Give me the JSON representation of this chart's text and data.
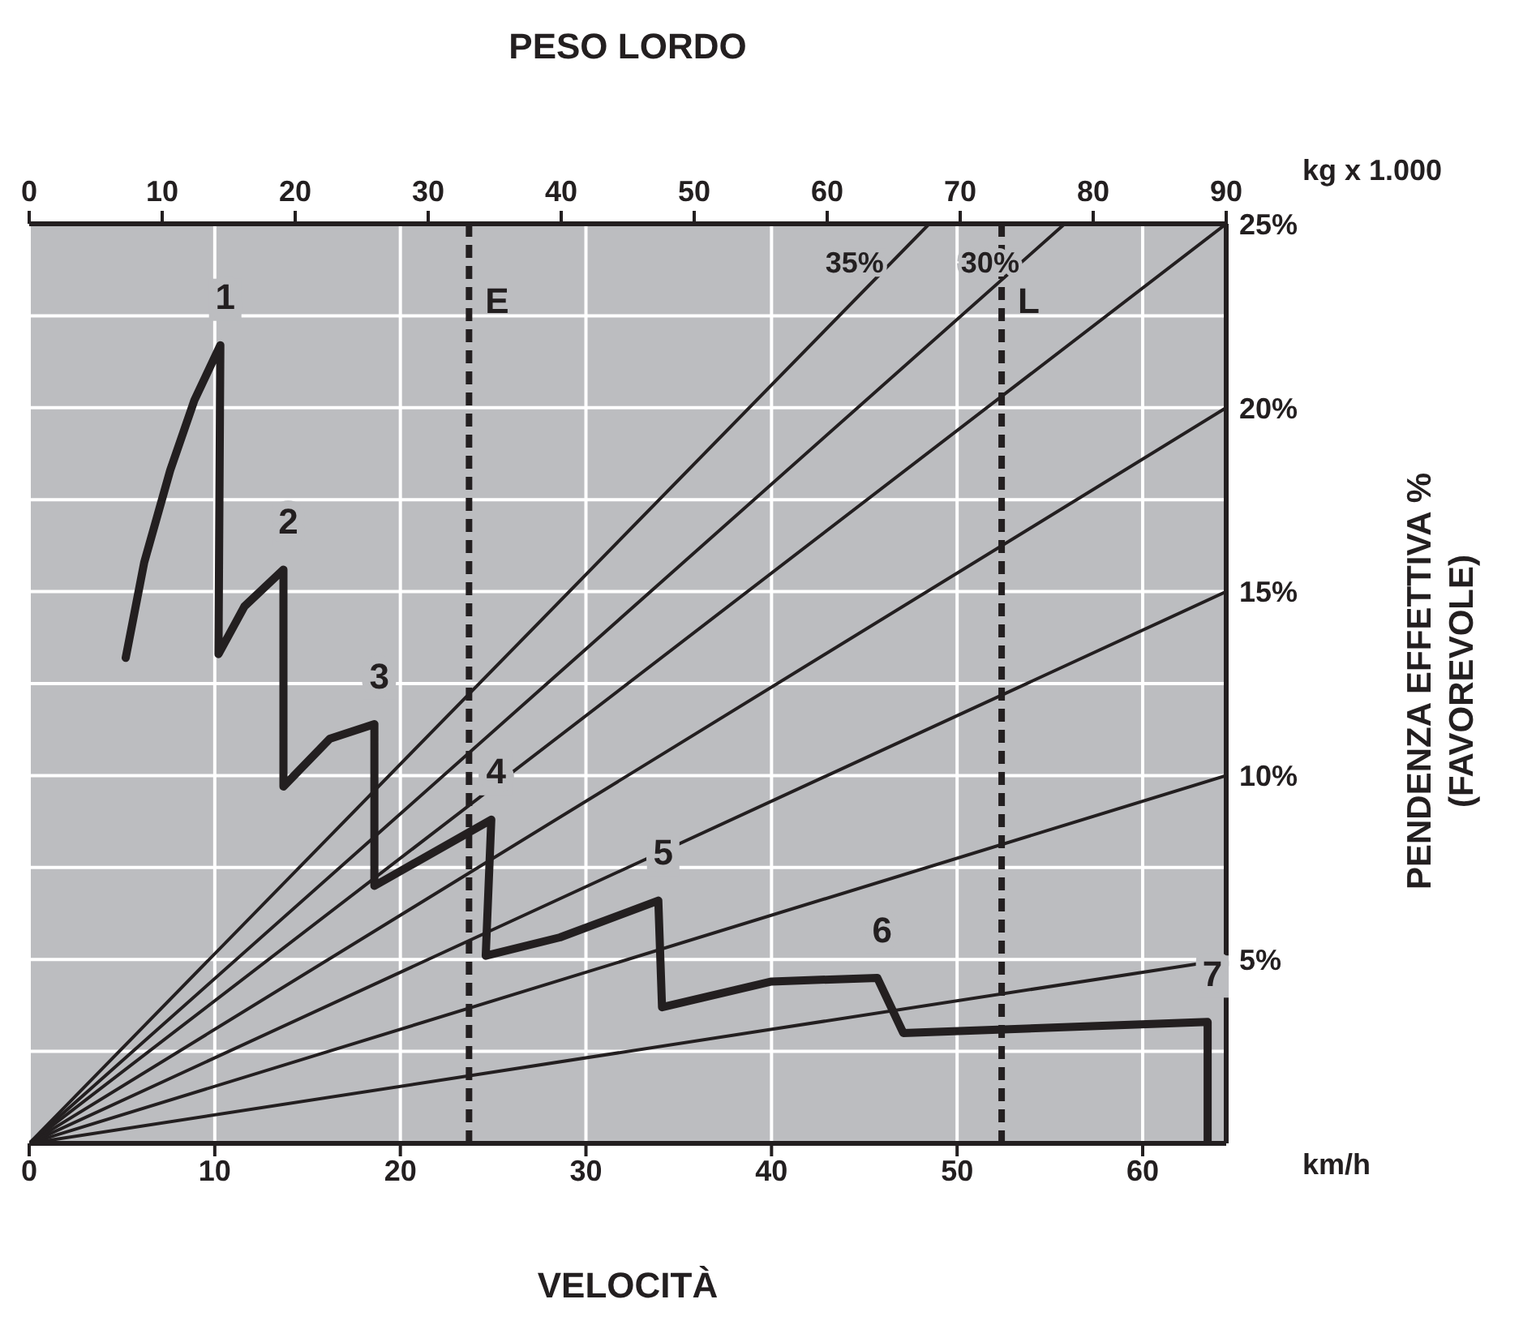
{
  "chart_data": {
    "type": "line",
    "xlabel": "VELOCITÀ",
    "x2label": "PESO LORDO",
    "ylabel": "PENDENZA EFFETTIVA %\n(FAVOREVOLE)",
    "xlim": [
      0,
      64.5
    ],
    "xticks": [
      0,
      10,
      20,
      30,
      40,
      50,
      60
    ],
    "x2lim": [
      0,
      90
    ],
    "x2ticks": [
      0,
      10,
      20,
      30,
      40,
      50,
      60,
      70,
      80,
      90
    ],
    "ylim": [
      0,
      25
    ],
    "yticks": [
      {
        "value": 2.5,
        "label": null
      },
      {
        "value": 5,
        "label": "5%"
      },
      {
        "value": 7.5,
        "label": null
      },
      {
        "value": 10,
        "label": "10%"
      },
      {
        "value": 12.5,
        "label": null
      },
      {
        "value": 15,
        "label": "15%"
      },
      {
        "value": 17.5,
        "label": null
      },
      {
        "value": 20,
        "label": "20%"
      },
      {
        "value": 22.5,
        "label": null
      },
      {
        "value": 25,
        "label": "25%"
      }
    ],
    "grid": true,
    "series": [
      {
        "color": "#231f20",
        "x": [
          5.2,
          6.2,
          7.6,
          8.9,
          10.3,
          10.2,
          11.6,
          13.7,
          13.7,
          16.2,
          18.6,
          18.6,
          24.9,
          24.6,
          28.6,
          33.9,
          34.1,
          40.0,
          45.7,
          47.1,
          63.5,
          63.5
        ],
        "values": [
          13.2,
          15.8,
          18.3,
          20.2,
          21.7,
          13.3,
          14.6,
          15.6,
          9.7,
          11.0,
          11.4,
          7.0,
          8.8,
          5.1,
          5.6,
          6.6,
          3.7,
          4.4,
          4.5,
          3.0,
          3.3,
          0
        ]
      },
      {
        "name": "35%",
        "color": "#231f20",
        "x": [
          0,
          48.5
        ],
        "values": [
          0,
          25
        ]
      },
      {
        "name": "30%",
        "color": "#231f20",
        "x": [
          0,
          55.8
        ],
        "values": [
          0,
          25
        ]
      },
      {
        "color": "#231f20",
        "x": [
          0,
          64.5
        ],
        "values": [
          0,
          25
        ]
      },
      {
        "color": "#231f20",
        "x": [
          0,
          64.5
        ],
        "values": [
          0,
          20
        ]
      },
      {
        "color": "#231f20",
        "x": [
          0,
          64.5
        ],
        "values": [
          0,
          15
        ]
      },
      {
        "color": "#231f20",
        "x": [
          0,
          64.5
        ],
        "values": [
          0,
          10
        ]
      },
      {
        "color": "#231f20",
        "x": [
          0,
          64.5
        ],
        "values": [
          0,
          5
        ]
      }
    ],
    "ref_lines": [
      {
        "axis": "x",
        "value": 23.7,
        "label": "E",
        "color": "#231f20",
        "line_style": "dashed"
      },
      {
        "axis": "x",
        "value": 52.4,
        "label": "L",
        "color": "#231f20",
        "line_style": "dashed"
      }
    ],
    "annotations": [
      "km/h",
      "kg x 1.000",
      {
        "text": "1",
        "x": 10.3,
        "y": 21.7
      },
      {
        "text": "2",
        "x": 13.7,
        "y": 15.6
      },
      {
        "text": "3",
        "x": 18.6,
        "y": 11.4
      },
      {
        "text": "4",
        "x": 24.9,
        "y": 8.8
      },
      {
        "text": "5",
        "x": 33.9,
        "y": 6.6
      },
      {
        "text": "6",
        "x": 45.7,
        "y": 4.5
      },
      {
        "text": "7",
        "x": 63.5,
        "y": 3.3
      }
    ]
  }
}
